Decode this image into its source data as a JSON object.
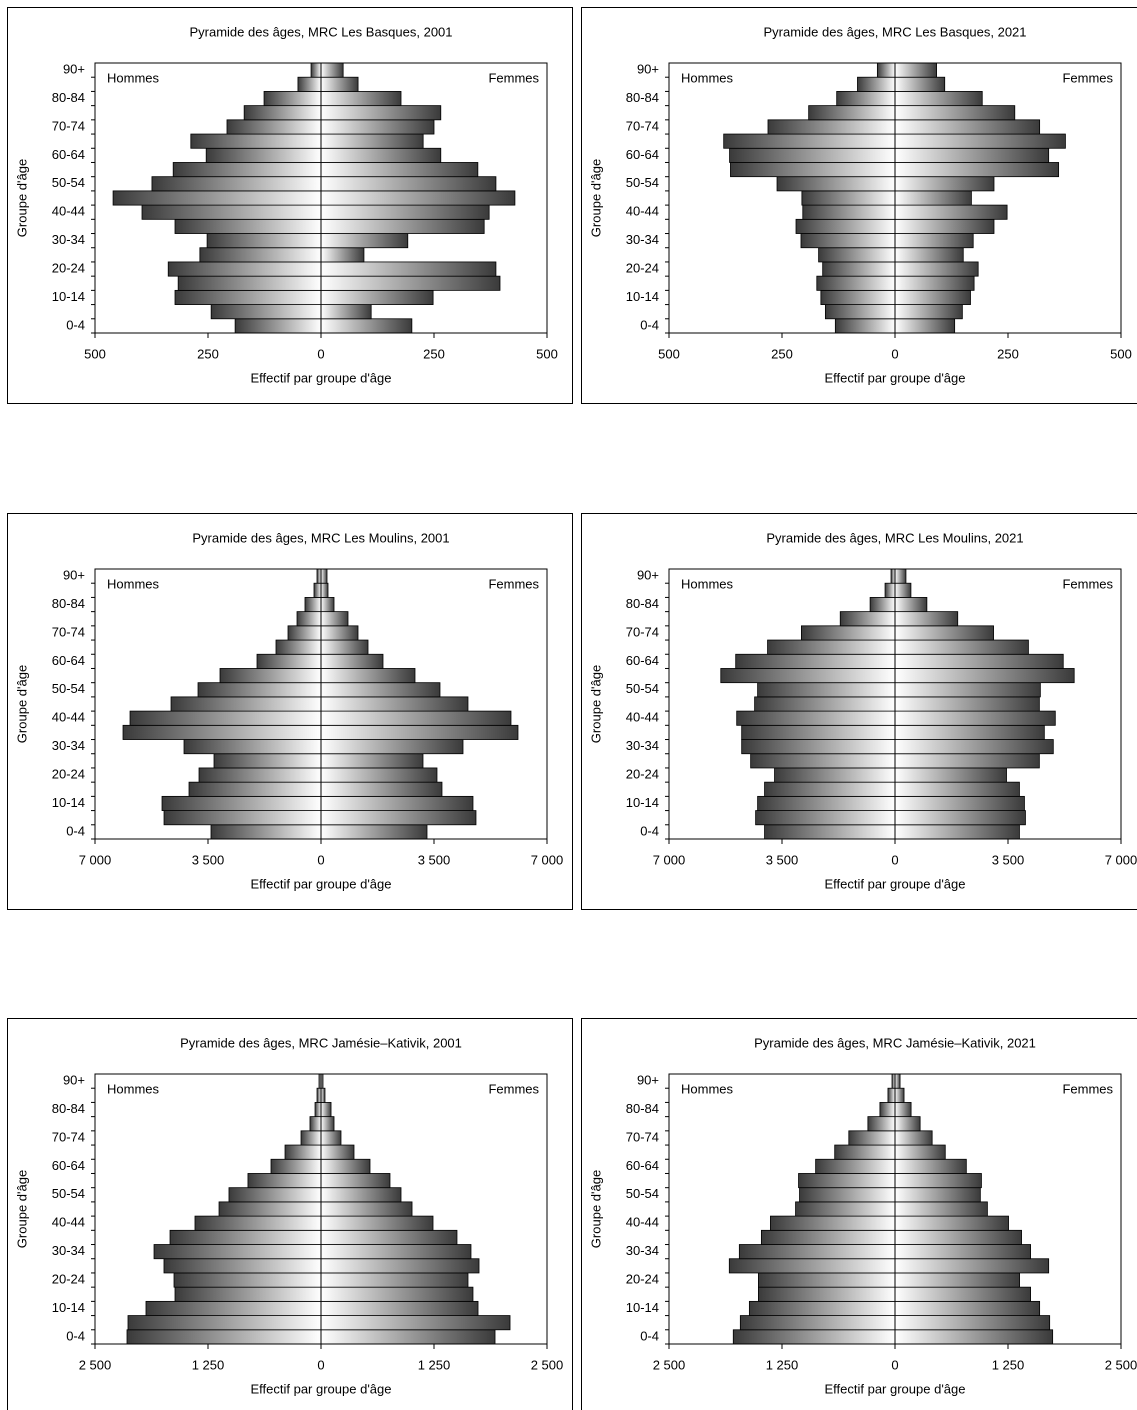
{
  "chart_data": [
    {
      "type": "pyramid",
      "title": "Pyramide des âges, MRC Les Basques, 2001",
      "x_label": "Effectif par groupe d'âge",
      "y_label": "Groupe d'âge",
      "categories": [
        "0-4",
        null,
        "10-14",
        null,
        "20-24",
        null,
        "30-34",
        null,
        "40-44",
        null,
        "50-54",
        null,
        "60-64",
        null,
        "70-74",
        null,
        "80-84",
        null,
        "90+"
      ],
      "series": [
        {
          "name": "Hommes",
          "color": "#3a3a3a",
          "values": [
            -190,
            -243,
            -323,
            -316,
            -338,
            -268,
            -252,
            -323,
            -396,
            -460,
            -374,
            -327,
            -254,
            -288,
            -208,
            -170,
            -126,
            -51,
            -22
          ]
        },
        {
          "name": "Femmes",
          "color": "#3a3a3a",
          "values": [
            201,
            111,
            248,
            396,
            387,
            95,
            192,
            361,
            372,
            429,
            387,
            347,
            265,
            226,
            250,
            265,
            177,
            82,
            49
          ]
        }
      ],
      "xlim": [
        -500,
        500
      ],
      "xticks": [
        {
          "value": -500,
          "label": "500"
        },
        {
          "value": -250,
          "label": "250"
        },
        0,
        250,
        500
      ]
    },
    {
      "type": "pyramid",
      "title": "Pyramide des âges, MRC Les Basques, 2021",
      "x_label": "Effectif par groupe d'âge",
      "y_label": "Groupe d'âge",
      "categories": [
        "0-4",
        null,
        "10-14",
        null,
        "20-24",
        null,
        "30-34",
        null,
        "40-44",
        null,
        "50-54",
        null,
        "60-64",
        null,
        "70-74",
        null,
        "80-84",
        null,
        "90+"
      ],
      "series": [
        {
          "name": "Hommes",
          "color": "#3a3a3a",
          "values": [
            -132,
            -154,
            -164,
            -173,
            -160,
            -169,
            -208,
            -219,
            -204,
            -206,
            -261,
            -364,
            -366,
            -379,
            -281,
            -191,
            -129,
            -83,
            -39
          ]
        },
        {
          "name": "Femmes",
          "color": "#3a3a3a",
          "values": [
            132,
            149,
            167,
            175,
            184,
            151,
            173,
            219,
            248,
            169,
            219,
            362,
            340,
            377,
            320,
            265,
            193,
            110,
            92
          ]
        }
      ],
      "xlim": [
        -500,
        500
      ],
      "xticks": [
        {
          "value": -500,
          "label": "500"
        },
        {
          "value": -250,
          "label": "250"
        },
        0,
        250,
        500
      ]
    },
    {
      "type": "pyramid",
      "title": "Pyramide des âges, MRC Les Moulins, 2001",
      "x_label": "Effectif par groupe d'âge",
      "y_label": "Groupe d'âge",
      "categories": [
        "0-4",
        null,
        "10-14",
        null,
        "20-24",
        null,
        "30-34",
        null,
        "40-44",
        null,
        "50-54",
        null,
        "60-64",
        null,
        "70-74",
        null,
        "80-84",
        null,
        "90+"
      ],
      "series": [
        {
          "name": "Hommes",
          "color": "#3a3a3a",
          "values": [
            -3407,
            -4862,
            -4924,
            -4088,
            -3778,
            -3314,
            -4243,
            -6132,
            -5915,
            -4645,
            -3809,
            -3128,
            -1982,
            -1394,
            -1022,
            -743,
            -496,
            -217,
            -124
          ]
        },
        {
          "name": "Femmes",
          "color": "#3a3a3a",
          "values": [
            3283,
            4800,
            4707,
            3747,
            3592,
            3159,
            4398,
            6101,
            5884,
            4552,
            3685,
            2911,
            1920,
            1456,
            1146,
            836,
            403,
            217,
            186
          ]
        }
      ],
      "xlim": [
        -7000,
        7000
      ],
      "xticks": [
        {
          "value": -7000,
          "label": "7 000"
        },
        {
          "value": -3500,
          "label": "3 500"
        },
        0,
        {
          "value": 3500,
          "label": "3 500"
        },
        {
          "value": 7000,
          "label": "7 000"
        }
      ]
    },
    {
      "type": "pyramid",
      "title": "Pyramide des âges, MRC Les Moulins, 2021",
      "x_label": "Effectif par groupe d'âge",
      "y_label": "Groupe d'âge",
      "categories": [
        "0-4",
        null,
        "10-14",
        null,
        "20-24",
        null,
        "30-34",
        null,
        "40-44",
        null,
        "50-54",
        null,
        "60-64",
        null,
        "70-74",
        null,
        "80-84",
        null,
        "90+"
      ],
      "series": [
        {
          "name": "Hommes",
          "color": "#3a3a3a",
          "values": [
            -4040,
            -4317,
            -4255,
            -4040,
            -3731,
            -4471,
            -4749,
            -4749,
            -4903,
            -4348,
            -4255,
            -5396,
            -4934,
            -3947,
            -2899,
            -1696,
            -771,
            -308,
            -123
          ]
        },
        {
          "name": "Femmes",
          "color": "#3a3a3a",
          "values": [
            3854,
            4040,
            4009,
            3854,
            3454,
            4471,
            4903,
            4625,
            4965,
            4471,
            4502,
            5550,
            5211,
            4132,
            3053,
            1943,
            987,
            493,
            339
          ]
        }
      ],
      "xlim": [
        -7000,
        7000
      ],
      "xticks": [
        {
          "value": -7000,
          "label": "7 000"
        },
        {
          "value": -3500,
          "label": "3 500"
        },
        0,
        {
          "value": 3500,
          "label": "3 500"
        },
        {
          "value": 7000,
          "label": "7 000"
        }
      ]
    },
    {
      "type": "pyramid",
      "title": "Pyramide des âges, MRC Jamésie–Kativik, 2001",
      "x_label": "Effectif par groupe d'âge",
      "y_label": "Groupe d'âge",
      "categories": [
        "0-4",
        null,
        "10-14",
        null,
        "20-24",
        null,
        "30-34",
        null,
        "40-44",
        null,
        "50-54",
        null,
        "60-64",
        null,
        "70-74",
        null,
        "80-84",
        null,
        "90+"
      ],
      "series": [
        {
          "name": "Hommes",
          "color": "#3a3a3a",
          "values": [
            -2146,
            -2135,
            -1936,
            -1615,
            -1626,
            -1737,
            -1847,
            -1670,
            -1394,
            -1128,
            -1018,
            -808,
            -553,
            -398,
            -221,
            -122,
            -66,
            -44,
            -22
          ]
        },
        {
          "name": "Femmes",
          "color": "#3a3a3a",
          "values": [
            1925,
            2091,
            1737,
            1681,
            1626,
            1748,
            1659,
            1504,
            1239,
            1007,
            885,
            763,
            542,
            365,
            221,
            144,
            111,
            44,
            22
          ]
        }
      ],
      "xlim": [
        -2500,
        2500
      ],
      "xticks": [
        {
          "value": -2500,
          "label": "2 500"
        },
        {
          "value": -1250,
          "label": "1 250"
        },
        0,
        {
          "value": 1250,
          "label": "1 250"
        },
        {
          "value": 2500,
          "label": "2 500"
        }
      ]
    },
    {
      "type": "pyramid",
      "title": "Pyramide des âges, MRC Jamésie–Kativik, 2021",
      "x_label": "Effectif par groupe d'âge",
      "y_label": "Groupe d'âge",
      "categories": [
        "0-4",
        null,
        "10-14",
        null,
        "20-24",
        null,
        "30-34",
        null,
        "40-44",
        null,
        "50-54",
        null,
        "60-64",
        null,
        "70-74",
        null,
        "80-84",
        null,
        "90+"
      ],
      "series": [
        {
          "name": "Hommes",
          "color": "#3a3a3a",
          "values": [
            -1789,
            -1711,
            -1611,
            -1511,
            -1511,
            -1833,
            -1722,
            -1478,
            -1378,
            -1100,
            -1056,
            -1067,
            -878,
            -667,
            -511,
            -300,
            -167,
            -78,
            -33
          ]
        },
        {
          "name": "Femmes",
          "color": "#3a3a3a",
          "values": [
            1744,
            1711,
            1600,
            1500,
            1378,
            1700,
            1500,
            1400,
            1256,
            1022,
            944,
            956,
            789,
            556,
            411,
            278,
            178,
            100,
            56
          ]
        }
      ],
      "xlim": [
        -2500,
        2500
      ],
      "xticks": [
        {
          "value": -2500,
          "label": "2 500"
        },
        {
          "value": -1250,
          "label": "1 250"
        },
        0,
        {
          "value": 1250,
          "label": "1 250"
        },
        {
          "value": 2500,
          "label": "2 500"
        }
      ]
    }
  ]
}
